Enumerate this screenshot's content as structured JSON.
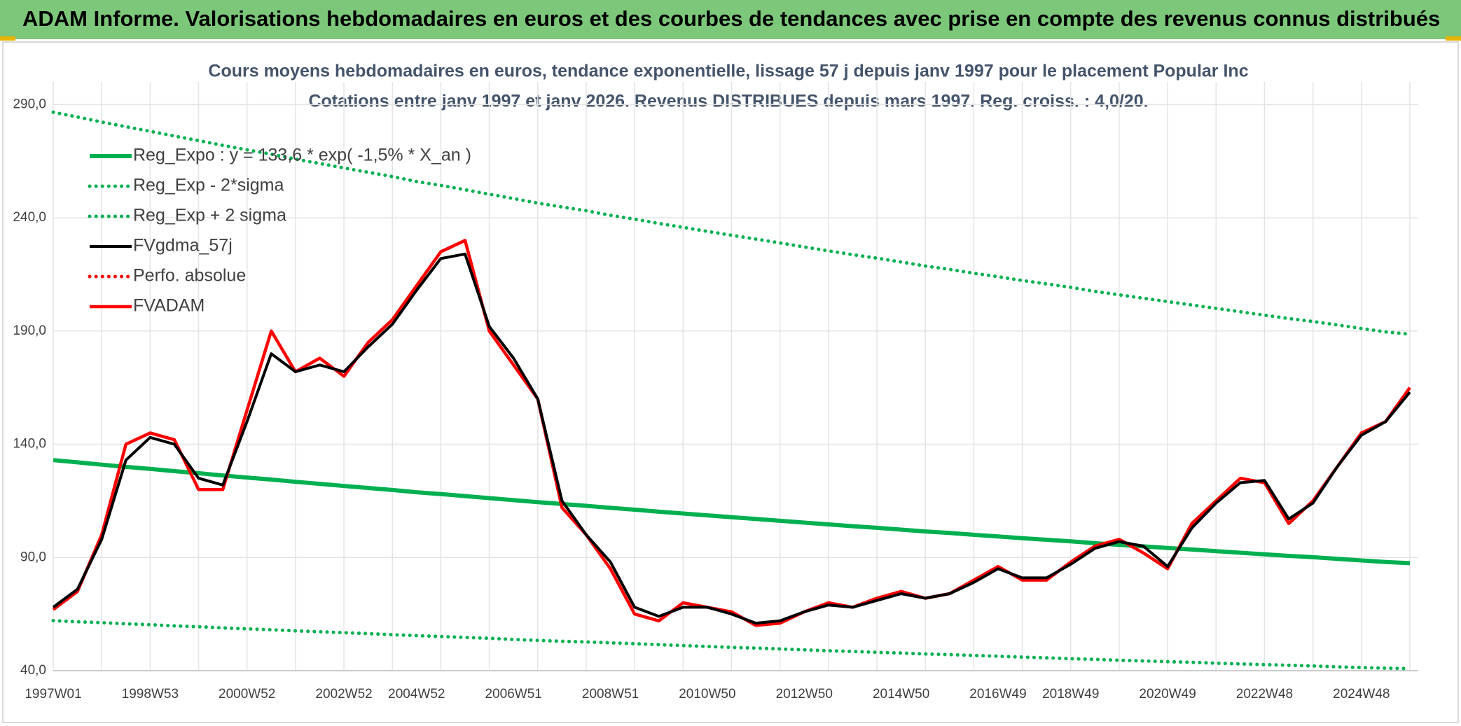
{
  "page_title": "ADAM Informe. Valorisations hebdomadaires en euros et des courbes de tendances avec prise en compte des revenus connus distribués",
  "chart_data": {
    "type": "line",
    "title": "Cours moyens hebdomadaires en euros, tendance exponentielle, lissage 57 j depuis janv 1997 pour le placement Popular Inc",
    "subtitle": "Cotations entre janv 1997 et janv 2026. Revenus DISTRIBUES depuis mars 1997. Reg. croiss. : 4,0/20.",
    "categories": [
      "1997W01",
      null,
      null,
      null,
      "1998W53",
      null,
      null,
      null,
      "2000W52",
      null,
      null,
      null,
      "2002W52",
      null,
      null,
      "2004W52",
      null,
      null,
      null,
      "2006W51",
      null,
      null,
      null,
      "2008W51",
      null,
      null,
      null,
      "2010W50",
      null,
      null,
      null,
      "2012W50",
      null,
      null,
      null,
      "2014W50",
      null,
      null,
      null,
      "2016W49",
      null,
      null,
      "2018W49",
      null,
      null,
      null,
      "2020W49",
      null,
      null,
      null,
      "2022W48",
      null,
      null,
      null,
      "2024W48",
      null,
      null
    ],
    "ylim": [
      40,
      300
    ],
    "yticks": [
      {
        "value": 40,
        "label": "40,0"
      },
      {
        "value": 90,
        "label": "90,0"
      },
      {
        "value": 140,
        "label": "140,0"
      },
      {
        "value": 190,
        "label": "190,0"
      },
      {
        "value": 240,
        "label": "240,0"
      },
      {
        "value": 290,
        "label": "290,0"
      }
    ],
    "grid": true,
    "legend": "top-left",
    "series": [
      {
        "name": "Reg_Expo : y = 133,6 * exp( -1,5% *  X_an )",
        "color": "#00b050",
        "style": "solid",
        "values": [
          133,
          132,
          131,
          130,
          129.1,
          128.1,
          127.2,
          126.2,
          125.3,
          124.4,
          123.4,
          122.5,
          121.6,
          120.7,
          119.8,
          118.8,
          118,
          117.1,
          116.2,
          115.3,
          114.4,
          113.6,
          112.8,
          111.9,
          111.1,
          110.2,
          109.4,
          108.6,
          107.8,
          107,
          106.2,
          105.4,
          104.6,
          103.8,
          103.1,
          102.3,
          101.5,
          100.8,
          100,
          99.3,
          98.5,
          97.8,
          97.1,
          96.3,
          95.6,
          94.9,
          94.2,
          93.5,
          92.8,
          92.1,
          91.4,
          90.7,
          90.1,
          89.4,
          88.7,
          88,
          87.5
        ]
      },
      {
        "name": "Reg_Exp - 2*sigma",
        "color": "#00b050",
        "style": "dotted",
        "values": [
          62.1,
          61.6,
          61.2,
          60.7,
          60.3,
          59.8,
          59.4,
          58.9,
          58.5,
          58.1,
          57.6,
          57.2,
          56.8,
          56.4,
          55.9,
          55.5,
          55.1,
          54.7,
          54.3,
          53.8,
          53.4,
          53,
          52.7,
          52.3,
          51.9,
          51.5,
          51.1,
          50.7,
          50.3,
          50,
          49.6,
          49.2,
          48.8,
          48.5,
          48.1,
          47.8,
          47.4,
          47.1,
          46.7,
          46.4,
          46,
          45.7,
          45.3,
          45,
          44.6,
          44.3,
          44,
          43.7,
          43.3,
          43,
          42.7,
          42.4,
          42.1,
          41.7,
          41.4,
          41.1,
          40.9
        ]
      },
      {
        "name": "Reg_Exp + 2 sigma",
        "color": "#00b050",
        "style": "dotted",
        "values": [
          286.6,
          284.5,
          282.3,
          280.2,
          278.2,
          276.1,
          274.1,
          272,
          270,
          268.1,
          265.9,
          264,
          262,
          260.1,
          258.2,
          256,
          254.3,
          252.4,
          250.4,
          248.5,
          246.5,
          244.8,
          243.1,
          241.1,
          239.4,
          237.5,
          235.8,
          234,
          232.3,
          230.6,
          228.9,
          227.1,
          225.4,
          223.7,
          222.2,
          220.5,
          218.7,
          217.2,
          215.5,
          214,
          212.3,
          210.8,
          209.3,
          207.5,
          206,
          204.5,
          203,
          201.5,
          200,
          198.5,
          197,
          195.5,
          194.2,
          192.7,
          191.1,
          189.6,
          188.6
        ]
      },
      {
        "name": "FVgdma_57j",
        "color": "#000000",
        "style": "solid",
        "values": [
          68,
          76,
          98,
          133,
          143,
          140,
          125,
          122,
          150,
          180,
          172,
          175,
          172,
          183,
          193,
          208,
          222,
          224,
          192,
          178,
          160,
          115,
          100,
          88,
          68,
          64,
          68,
          68,
          65,
          61,
          62,
          66,
          69,
          68,
          71,
          74,
          72,
          74,
          79,
          85,
          81,
          81,
          87,
          94,
          97,
          95,
          86,
          103,
          114,
          123,
          124,
          107,
          114,
          130,
          144,
          150,
          163
        ]
      },
      {
        "name": "Perfo. absolue",
        "color": "#ff0000",
        "style": "dotted",
        "values": [
          null,
          null,
          null,
          null,
          null,
          null,
          null,
          null,
          null,
          null,
          null,
          null,
          null,
          null,
          null,
          null,
          null,
          null,
          null,
          null,
          null,
          null,
          null,
          null,
          null,
          null,
          null,
          null,
          null,
          null,
          null,
          null,
          null,
          null,
          null,
          null,
          null,
          null,
          null,
          null,
          null,
          null,
          null,
          null,
          null,
          null,
          null,
          null,
          null,
          null,
          null,
          null,
          null,
          null,
          null,
          null,
          null
        ]
      },
      {
        "name": "FVADAM",
        "color": "#ff0000",
        "style": "solid",
        "values": [
          67,
          75,
          100,
          140,
          145,
          142,
          120,
          120,
          155,
          190,
          172,
          178,
          170,
          185,
          195,
          210,
          225,
          230,
          190,
          175,
          160,
          112,
          100,
          85,
          65,
          62,
          70,
          68,
          66,
          60,
          61,
          66,
          70,
          68,
          72,
          75,
          72,
          74,
          80,
          86,
          80,
          80,
          88,
          95,
          98,
          92,
          85,
          105,
          115,
          125,
          123,
          105,
          115,
          130,
          145,
          150,
          165
        ]
      }
    ]
  }
}
